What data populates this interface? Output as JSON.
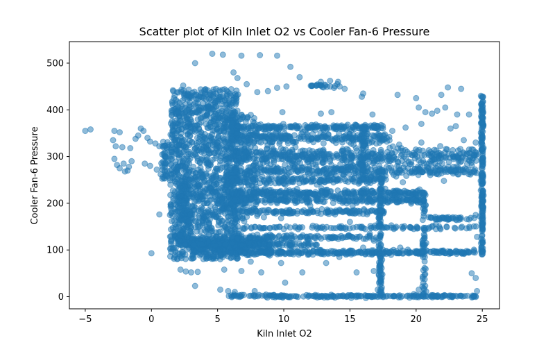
{
  "chart_data": {
    "type": "scatter",
    "title": "Scatter plot of Kiln Inlet O2 vs Cooler Fan-6 Pressure",
    "xlabel": "Kiln Inlet O2",
    "ylabel": "Cooler Fan-6 Pressure",
    "xlim": [
      -6.2,
      26.3
    ],
    "ylim": [
      -26,
      546
    ],
    "xticks": [
      -5,
      0,
      5,
      10,
      15,
      20,
      25
    ],
    "yticks": [
      0,
      100,
      200,
      300,
      400,
      500
    ],
    "xtick_labels": [
      "−5",
      "0",
      "5",
      "10",
      "15",
      "20",
      "25"
    ],
    "ytick_labels": [
      "0",
      "100",
      "200",
      "300",
      "400",
      "500"
    ],
    "grid": false,
    "marker_color": "#1f77b4",
    "marker_alpha": 0.5,
    "points": [
      {
        "x": -5.0,
        "y": 355
      },
      {
        "x": -4.6,
        "y": 358
      },
      {
        "x": -2.8,
        "y": 355
      },
      {
        "x": -2.4,
        "y": 352
      },
      {
        "x": -2.9,
        "y": 335
      },
      {
        "x": -2.7,
        "y": 322
      },
      {
        "x": -2.2,
        "y": 320
      },
      {
        "x": -1.6,
        "y": 318
      },
      {
        "x": -1.2,
        "y": 338
      },
      {
        "x": -1.0,
        "y": 345
      },
      {
        "x": -0.8,
        "y": 360
      },
      {
        "x": -0.6,
        "y": 355
      },
      {
        "x": -0.3,
        "y": 340
      },
      {
        "x": -0.1,
        "y": 332
      },
      {
        "x": 0.3,
        "y": 328
      },
      {
        "x": 0.6,
        "y": 322
      },
      {
        "x": -2.8,
        "y": 295
      },
      {
        "x": -2.6,
        "y": 282
      },
      {
        "x": -2.4,
        "y": 275
      },
      {
        "x": -2.1,
        "y": 285
      },
      {
        "x": -1.8,
        "y": 270
      },
      {
        "x": -1.5,
        "y": 290
      },
      {
        "x": -1.7,
        "y": 278
      },
      {
        "x": -2.0,
        "y": 268
      },
      {
        "x": -0.5,
        "y": 285
      },
      {
        "x": -0.1,
        "y": 280
      },
      {
        "x": 0.4,
        "y": 272
      },
      {
        "x": 0.7,
        "y": 262
      },
      {
        "x": 1.1,
        "y": 300
      },
      {
        "x": 1.3,
        "y": 325
      },
      {
        "x": 0.9,
        "y": 320
      },
      {
        "x": 1.2,
        "y": 258
      },
      {
        "x": 0.0,
        "y": 93
      },
      {
        "x": 0.6,
        "y": 176
      },
      {
        "x": 1.4,
        "y": 175
      },
      {
        "x": 1.5,
        "y": 118
      },
      {
        "x": 1.6,
        "y": 105
      },
      {
        "x": 2.2,
        "y": 58
      },
      {
        "x": 2.6,
        "y": 54
      },
      {
        "x": 3.0,
        "y": 52
      },
      {
        "x": 3.3,
        "y": 23
      },
      {
        "x": 3.5,
        "y": 53
      },
      {
        "x": 2.4,
        "y": 452
      },
      {
        "x": 4.6,
        "y": 520
      },
      {
        "x": 5.4,
        "y": 518
      },
      {
        "x": 6.8,
        "y": 516
      },
      {
        "x": 8.2,
        "y": 517
      },
      {
        "x": 9.5,
        "y": 516
      },
      {
        "x": 6.2,
        "y": 480
      },
      {
        "x": 6.5,
        "y": 468
      },
      {
        "x": 7.2,
        "y": 455
      },
      {
        "x": 8.0,
        "y": 438
      },
      {
        "x": 8.8,
        "y": 440
      },
      {
        "x": 9.5,
        "y": 447
      },
      {
        "x": 10.2,
        "y": 450
      },
      {
        "x": 10.5,
        "y": 492
      },
      {
        "x": 11.2,
        "y": 470
      },
      {
        "x": 12.1,
        "y": 452
      },
      {
        "x": 12.8,
        "y": 460
      },
      {
        "x": 13.5,
        "y": 462
      },
      {
        "x": 14.1,
        "y": 460
      },
      {
        "x": 13.0,
        "y": 448
      },
      {
        "x": 13.8,
        "y": 447
      },
      {
        "x": 14.6,
        "y": 445
      },
      {
        "x": 15.9,
        "y": 428
      },
      {
        "x": 16.0,
        "y": 435
      },
      {
        "x": 18.6,
        "y": 432
      },
      {
        "x": 20.0,
        "y": 425
      },
      {
        "x": 21.9,
        "y": 432
      },
      {
        "x": 22.4,
        "y": 448
      },
      {
        "x": 23.4,
        "y": 445
      },
      {
        "x": 22.2,
        "y": 405
      },
      {
        "x": 9.9,
        "y": 395
      },
      {
        "x": 12.8,
        "y": 392
      },
      {
        "x": 13.6,
        "y": 395
      },
      {
        "x": 16.7,
        "y": 390
      },
      {
        "x": 20.2,
        "y": 405
      },
      {
        "x": 20.7,
        "y": 395
      },
      {
        "x": 21.2,
        "y": 392
      },
      {
        "x": 21.6,
        "y": 398
      },
      {
        "x": 23.1,
        "y": 390
      },
      {
        "x": 24.0,
        "y": 390
      },
      {
        "x": 18.2,
        "y": 355
      },
      {
        "x": 19.2,
        "y": 362
      },
      {
        "x": 20.4,
        "y": 370
      },
      {
        "x": 22.6,
        "y": 360
      },
      {
        "x": 23.0,
        "y": 365
      },
      {
        "x": 20.4,
        "y": 330
      },
      {
        "x": 19.0,
        "y": 245
      },
      {
        "x": 21.7,
        "y": 262
      },
      {
        "x": 22.1,
        "y": 248
      },
      {
        "x": 23.2,
        "y": 262
      },
      {
        "x": 23.6,
        "y": 335
      },
      {
        "x": 24.0,
        "y": 315
      },
      {
        "x": 24.5,
        "y": 330
      },
      {
        "x": 24.9,
        "y": 430
      },
      {
        "x": 7.0,
        "y": 315
      },
      {
        "x": 8.8,
        "y": 308
      },
      {
        "x": 11.2,
        "y": 252
      },
      {
        "x": 12.5,
        "y": 240
      },
      {
        "x": 9.5,
        "y": 200
      },
      {
        "x": 10.8,
        "y": 210
      },
      {
        "x": 12.0,
        "y": 195
      },
      {
        "x": 15.2,
        "y": 195
      },
      {
        "x": 8.5,
        "y": 170
      },
      {
        "x": 9.8,
        "y": 168
      },
      {
        "x": 12.6,
        "y": 148
      },
      {
        "x": 14.2,
        "y": 150
      },
      {
        "x": 15.0,
        "y": 160
      },
      {
        "x": 16.5,
        "y": 135
      },
      {
        "x": 17.3,
        "y": 130
      },
      {
        "x": 18.1,
        "y": 148
      },
      {
        "x": 19.6,
        "y": 148
      },
      {
        "x": 21.5,
        "y": 155
      },
      {
        "x": 22.3,
        "y": 150
      },
      {
        "x": 23.0,
        "y": 165
      },
      {
        "x": 7.2,
        "y": 150
      },
      {
        "x": 8.0,
        "y": 133
      },
      {
        "x": 7.5,
        "y": 75
      },
      {
        "x": 8.3,
        "y": 52
      },
      {
        "x": 9.8,
        "y": 72
      },
      {
        "x": 10.1,
        "y": 30
      },
      {
        "x": 11.4,
        "y": 52
      },
      {
        "x": 13.2,
        "y": 72
      },
      {
        "x": 14.2,
        "y": 85
      },
      {
        "x": 15.5,
        "y": 52
      },
      {
        "x": 16.8,
        "y": 55
      },
      {
        "x": 17.2,
        "y": 30
      },
      {
        "x": 17.1,
        "y": 15
      },
      {
        "x": 20.2,
        "y": 15
      },
      {
        "x": 24.2,
        "y": 50
      },
      {
        "x": 24.5,
        "y": 40
      },
      {
        "x": 24.6,
        "y": 12
      },
      {
        "x": 5.2,
        "y": 15
      },
      {
        "x": 5.8,
        "y": 12
      },
      {
        "x": 6.3,
        "y": 10
      },
      {
        "x": 7.8,
        "y": 12
      },
      {
        "x": 6.8,
        "y": 55
      },
      {
        "x": 5.5,
        "y": 58
      },
      {
        "x": 6.0,
        "y": 95
      },
      {
        "x": 8.9,
        "y": 95
      },
      {
        "x": 11.5,
        "y": 110
      },
      {
        "x": 12.2,
        "y": 90
      },
      {
        "x": 16.0,
        "y": 105
      },
      {
        "x": 16.8,
        "y": 120
      },
      {
        "x": 18.8,
        "y": 105
      },
      {
        "x": 20.6,
        "y": 110
      },
      {
        "x": 22.0,
        "y": 95
      },
      {
        "x": 3.3,
        "y": 500
      },
      {
        "x": 24.6,
        "y": 128
      },
      {
        "x": 24.5,
        "y": 175
      },
      {
        "x": 24.8,
        "y": 172
      }
    ],
    "dense_clusters": [
      {
        "x_min": 1.4,
        "x_max": 6.6,
        "y_min": 80,
        "y_max": 445,
        "count": 1400
      },
      {
        "x_min": 2.0,
        "x_max": 3.0,
        "y_min": 110,
        "y_max": 250,
        "count": 150
      },
      {
        "x_min": 5.5,
        "x_max": 8.0,
        "y_min": 160,
        "y_max": 390,
        "count": 220
      },
      {
        "x_min": 3.0,
        "x_max": 9.0,
        "y_min": 95,
        "y_max": 125,
        "count": 240
      }
    ],
    "horizontal_bands": [
      {
        "y": 363,
        "x_min": 6.0,
        "x_max": 17.5,
        "spread": 6,
        "count": 180
      },
      {
        "y": 340,
        "x_min": 6.0,
        "x_max": 18.0,
        "spread": 12,
        "count": 240
      },
      {
        "y": 300,
        "x_min": 6.0,
        "x_max": 24.6,
        "spread": 18,
        "count": 460
      },
      {
        "y": 270,
        "x_min": 6.0,
        "x_max": 24.6,
        "spread": 10,
        "count": 300
      },
      {
        "y": 250,
        "x_min": 6.0,
        "x_max": 17.8,
        "spread": 8,
        "count": 180
      },
      {
        "y": 222,
        "x_min": 6.0,
        "x_max": 20.7,
        "spread": 8,
        "count": 280
      },
      {
        "y": 207,
        "x_min": 6.0,
        "x_max": 20.7,
        "spread": 7,
        "count": 240
      },
      {
        "y": 182,
        "x_min": 6.0,
        "x_max": 17.6,
        "spread": 5,
        "count": 140
      },
      {
        "y": 168,
        "x_min": 20.8,
        "x_max": 24.6,
        "spread": 3,
        "count": 40
      },
      {
        "y": 148,
        "x_min": 6.0,
        "x_max": 24.6,
        "spread": 4,
        "count": 110
      },
      {
        "y": 127,
        "x_min": 6.0,
        "x_max": 17.3,
        "spread": 5,
        "count": 120
      },
      {
        "y": 112,
        "x_min": 3.0,
        "x_max": 12.5,
        "spread": 5,
        "count": 140
      },
      {
        "y": 95,
        "x_min": 6.0,
        "x_max": 24.6,
        "spread": 5,
        "count": 320
      },
      {
        "y": 1,
        "x_min": 5.8,
        "x_max": 24.7,
        "spread": 3,
        "count": 220
      },
      {
        "y": 452,
        "x_min": 12.0,
        "x_max": 14.6,
        "spread": 3,
        "count": 20
      }
    ],
    "vertical_bands": [
      {
        "x": 17.3,
        "y_min": 0,
        "y_max": 260,
        "spread": 0.15,
        "count": 120
      },
      {
        "x": 20.6,
        "y_min": 0,
        "y_max": 225,
        "spread": 0.15,
        "count": 60
      },
      {
        "x": 25.0,
        "y_min": 90,
        "y_max": 430,
        "spread": 0.1,
        "count": 200
      },
      {
        "x": 16.0,
        "y_min": 250,
        "y_max": 360,
        "spread": 0.2,
        "count": 60
      },
      {
        "x": 1.0,
        "y_min": 250,
        "y_max": 335,
        "spread": 0.25,
        "count": 40
      }
    ]
  }
}
